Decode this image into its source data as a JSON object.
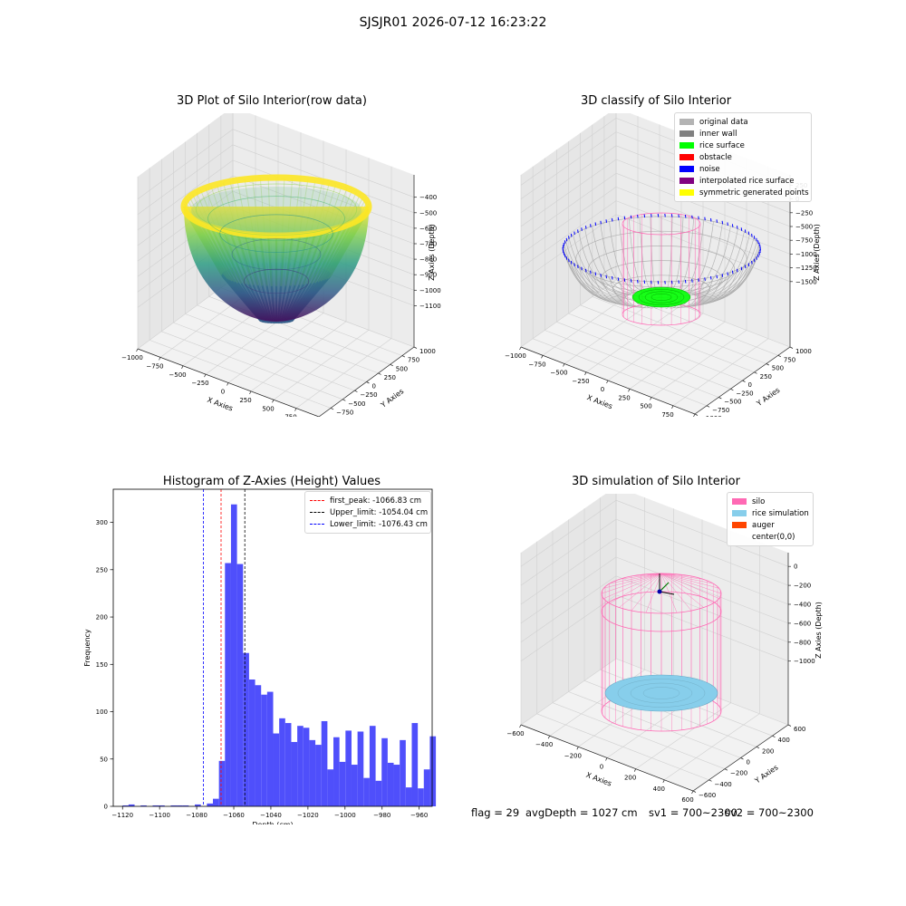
{
  "figure": {
    "suptitle": "SJSJR01 2026-07-12 16:23:22"
  },
  "colors": {
    "gray_light": "#b4b4b4",
    "gray_dark": "#808080",
    "green": "#00ff00",
    "red": "#ff0000",
    "blue": "#0000ff",
    "purple": "#800080",
    "yellow": "#ffff00",
    "pink": "#ff69b4",
    "skyblue": "#87ceeb",
    "orange": "#ff4500",
    "hist_blue": "#4f4ffb"
  },
  "chart_data": [
    {
      "type": "scatter",
      "projection": "3d",
      "title": "3D Plot of Silo Interior(row data)",
      "xlabel": "X Axies",
      "ylabel": "Y Axies",
      "zlabel": "Z Axies (Depth)",
      "xticks": [
        "−1000",
        "−750",
        "−500",
        "−250",
        "0",
        "250",
        "500",
        "750",
        "1000"
      ],
      "yticks": [
        "−1000",
        "−750",
        "−500",
        "−250",
        "0",
        "250",
        "500",
        "750",
        "1000"
      ],
      "zticks": [
        "−400",
        "−500",
        "−600",
        "−700",
        "−800",
        "−900",
        "−1000",
        "−1100"
      ],
      "xlim": [
        -1000,
        1000
      ],
      "ylim": [
        -1000,
        1000
      ],
      "zlim": [
        -1150,
        -380
      ],
      "surface": {
        "shape": "paraboloid bowl",
        "rim_radius": 1000,
        "rim_z": -380,
        "bottom_z": -1130,
        "colormap": "viridis"
      }
    },
    {
      "type": "scatter",
      "projection": "3d",
      "title": "3D classify of Silo Interior",
      "xlabel": "X Axies",
      "ylabel": "Y Axies",
      "zlabel": "Z Axies (Depth)",
      "xticks": [
        "−1000",
        "−750",
        "−500",
        "−250",
        "0",
        "250",
        "500",
        "750",
        "1000"
      ],
      "yticks": [
        "−1000",
        "−750",
        "−500",
        "−250",
        "0",
        "250",
        "500",
        "750",
        "1000"
      ],
      "zticks": [
        "250",
        "0",
        "−250",
        "−500",
        "−750",
        "−1000",
        "−1250",
        "−1500"
      ],
      "legend": [
        {
          "label": "original data",
          "color": "#b4b4b4"
        },
        {
          "label": "inner wall",
          "color": "#808080"
        },
        {
          "label": "rice surface",
          "color": "#00ff00"
        },
        {
          "label": "obstacle",
          "color": "#ff0000"
        },
        {
          "label": "noise",
          "color": "#0000ff"
        },
        {
          "label": "interpolated rice surface",
          "color": "#800080"
        },
        {
          "label": "symmetric generated points",
          "color": "#ffff00"
        }
      ]
    },
    {
      "type": "bar",
      "title": "Histogram of Z-Axies (Height) Values",
      "xlabel": "Depth (cm)",
      "ylabel": "Frequency",
      "xlim": [
        -1125,
        -953
      ],
      "ylim": [
        0,
        335
      ],
      "xticks": [
        -1120,
        -1100,
        -1080,
        -1060,
        -1040,
        -1020,
        -1000,
        -980,
        -960
      ],
      "yticks": [
        0,
        50,
        100,
        150,
        200,
        250,
        300
      ],
      "bin_start": -1120,
      "bin_width": 3.25,
      "values": [
        1,
        2,
        0,
        1,
        0,
        1,
        1,
        0,
        1,
        1,
        1,
        0,
        2,
        0,
        3,
        8,
        48,
        257,
        319,
        256,
        162,
        134,
        128,
        118,
        121,
        77,
        93,
        88,
        68,
        85,
        83,
        70,
        65,
        90,
        39,
        73,
        47,
        80,
        44,
        79,
        30,
        85,
        27,
        72,
        46,
        44,
        70,
        20,
        88,
        19,
        39,
        74
      ],
      "lines": [
        {
          "label": "first_peak: -1066.83 cm",
          "x": -1066.83,
          "color": "#ff0000"
        },
        {
          "label": "Upper_limit: -1054.04 cm",
          "x": -1054.04,
          "color": "#000000"
        },
        {
          "label": "Lower_limit: -1076.43 cm",
          "x": -1076.43,
          "color": "#0000ff"
        }
      ],
      "legend_position": "top-right"
    },
    {
      "type": "scatter",
      "projection": "3d",
      "title": "3D simulation of Silo Interior",
      "xlabel": "X Axies",
      "ylabel": "Y Axies",
      "zlabel": "Z Axies (Depth)",
      "xticks": [
        "−600",
        "−400",
        "−200",
        "0",
        "200",
        "400",
        "600"
      ],
      "yticks": [
        "−600",
        "−400",
        "−200",
        "0",
        "200",
        "400",
        "600"
      ],
      "zticks": [
        "0",
        "−200",
        "−400",
        "−600",
        "−800",
        "−1000"
      ],
      "legend": [
        {
          "label": "silo",
          "color": "#ff69b4"
        },
        {
          "label": "rice simulation",
          "color": "#87ceeb"
        },
        {
          "label": "auger",
          "color": "#ff4500"
        },
        {
          "label": "center(0,0)",
          "color": ""
        }
      ]
    }
  ],
  "footer": {
    "flag": "flag = 29",
    "avg": "avgDepth = 1027 cm",
    "sv1": "sv1 = 700~2300",
    "sv2": "sv2 = 700~2300"
  }
}
